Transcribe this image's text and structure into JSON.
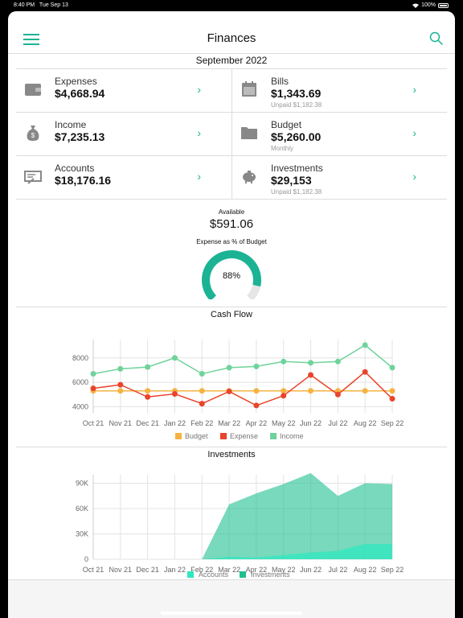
{
  "status": {
    "time": "8:40 PM",
    "date": "Tue Sep 13",
    "battery": "100%"
  },
  "nav": {
    "title": "Finances"
  },
  "month": "September 2022",
  "summary": [
    {
      "label": "Expenses",
      "value": "$4,668.94",
      "sub": "",
      "icon": "wallet-icon"
    },
    {
      "label": "Bills",
      "value": "$1,343.69",
      "sub": "Unpaid $1,182.38",
      "icon": "calendar-icon"
    },
    {
      "label": "Income",
      "value": "$7,235.13",
      "sub": "",
      "icon": "money-bag-icon"
    },
    {
      "label": "Budget",
      "value": "$5,260.00",
      "sub": "Monthly",
      "icon": "folder-icon"
    },
    {
      "label": "Accounts",
      "value": "$18,176.16",
      "sub": "",
      "icon": "check-icon"
    },
    {
      "label": "Investments",
      "value": "$29,153",
      "sub": "Unpaid $1,182.38",
      "icon": "piggy-bank-icon"
    }
  ],
  "available": {
    "label": "Available",
    "value": "$591.06"
  },
  "gauge": {
    "label": "Expense as % of Budget",
    "value_text": "88%",
    "fraction": 0.88
  },
  "colors": {
    "accent": "#1bb394",
    "budget": "#f5b342",
    "expense": "#e8452c",
    "income": "#6fd39b",
    "accounts": "#2ee8c0",
    "investments": "#1fbf8f"
  },
  "chart_data": [
    {
      "type": "line",
      "title": "Cash Flow",
      "categories": [
        "Oct 21",
        "Nov 21",
        "Dec 21",
        "Jan 22",
        "Feb 22",
        "Mar 22",
        "Apr 22",
        "May 22",
        "Jun 22",
        "Jul 22",
        "Aug 22",
        "Sep 22"
      ],
      "yticks": [
        "4000",
        "6000",
        "8000"
      ],
      "ylim": [
        3500,
        9500
      ],
      "series": [
        {
          "name": "Budget",
          "values": [
            5300,
            5300,
            5300,
            5300,
            5300,
            5300,
            5300,
            5300,
            5300,
            5300,
            5300,
            5300
          ]
        },
        {
          "name": "Expense",
          "values": [
            5500,
            5800,
            4800,
            5050,
            4250,
            5250,
            4100,
            4900,
            6600,
            5000,
            6850,
            4650
          ]
        },
        {
          "name": "Income",
          "values": [
            6700,
            7100,
            7250,
            8000,
            6700,
            7200,
            7300,
            7700,
            7600,
            7700,
            9050,
            7200
          ]
        }
      ],
      "legend_position": "bottom",
      "grid": true
    },
    {
      "type": "area",
      "title": "Investments",
      "categories": [
        "Oct 21",
        "Nov 21",
        "Dec 21",
        "Jan 22",
        "Feb 22",
        "Mar 22",
        "Apr 22",
        "May 22",
        "Jun 22",
        "Jul 22",
        "Aug 22",
        "Sep 22"
      ],
      "yticks": [
        "0",
        "30K",
        "60K",
        "90K"
      ],
      "ylim": [
        0,
        100000
      ],
      "series": [
        {
          "name": "Accounts",
          "values": [
            0,
            0,
            0,
            0,
            0,
            3000,
            2000,
            5000,
            8000,
            10000,
            18000,
            18000
          ]
        },
        {
          "name": "Investments",
          "values": [
            0,
            0,
            0,
            0,
            0,
            65000,
            78000,
            89000,
            102000,
            75000,
            90000,
            89000
          ]
        }
      ],
      "legend_position": "bottom",
      "grid": true
    }
  ]
}
